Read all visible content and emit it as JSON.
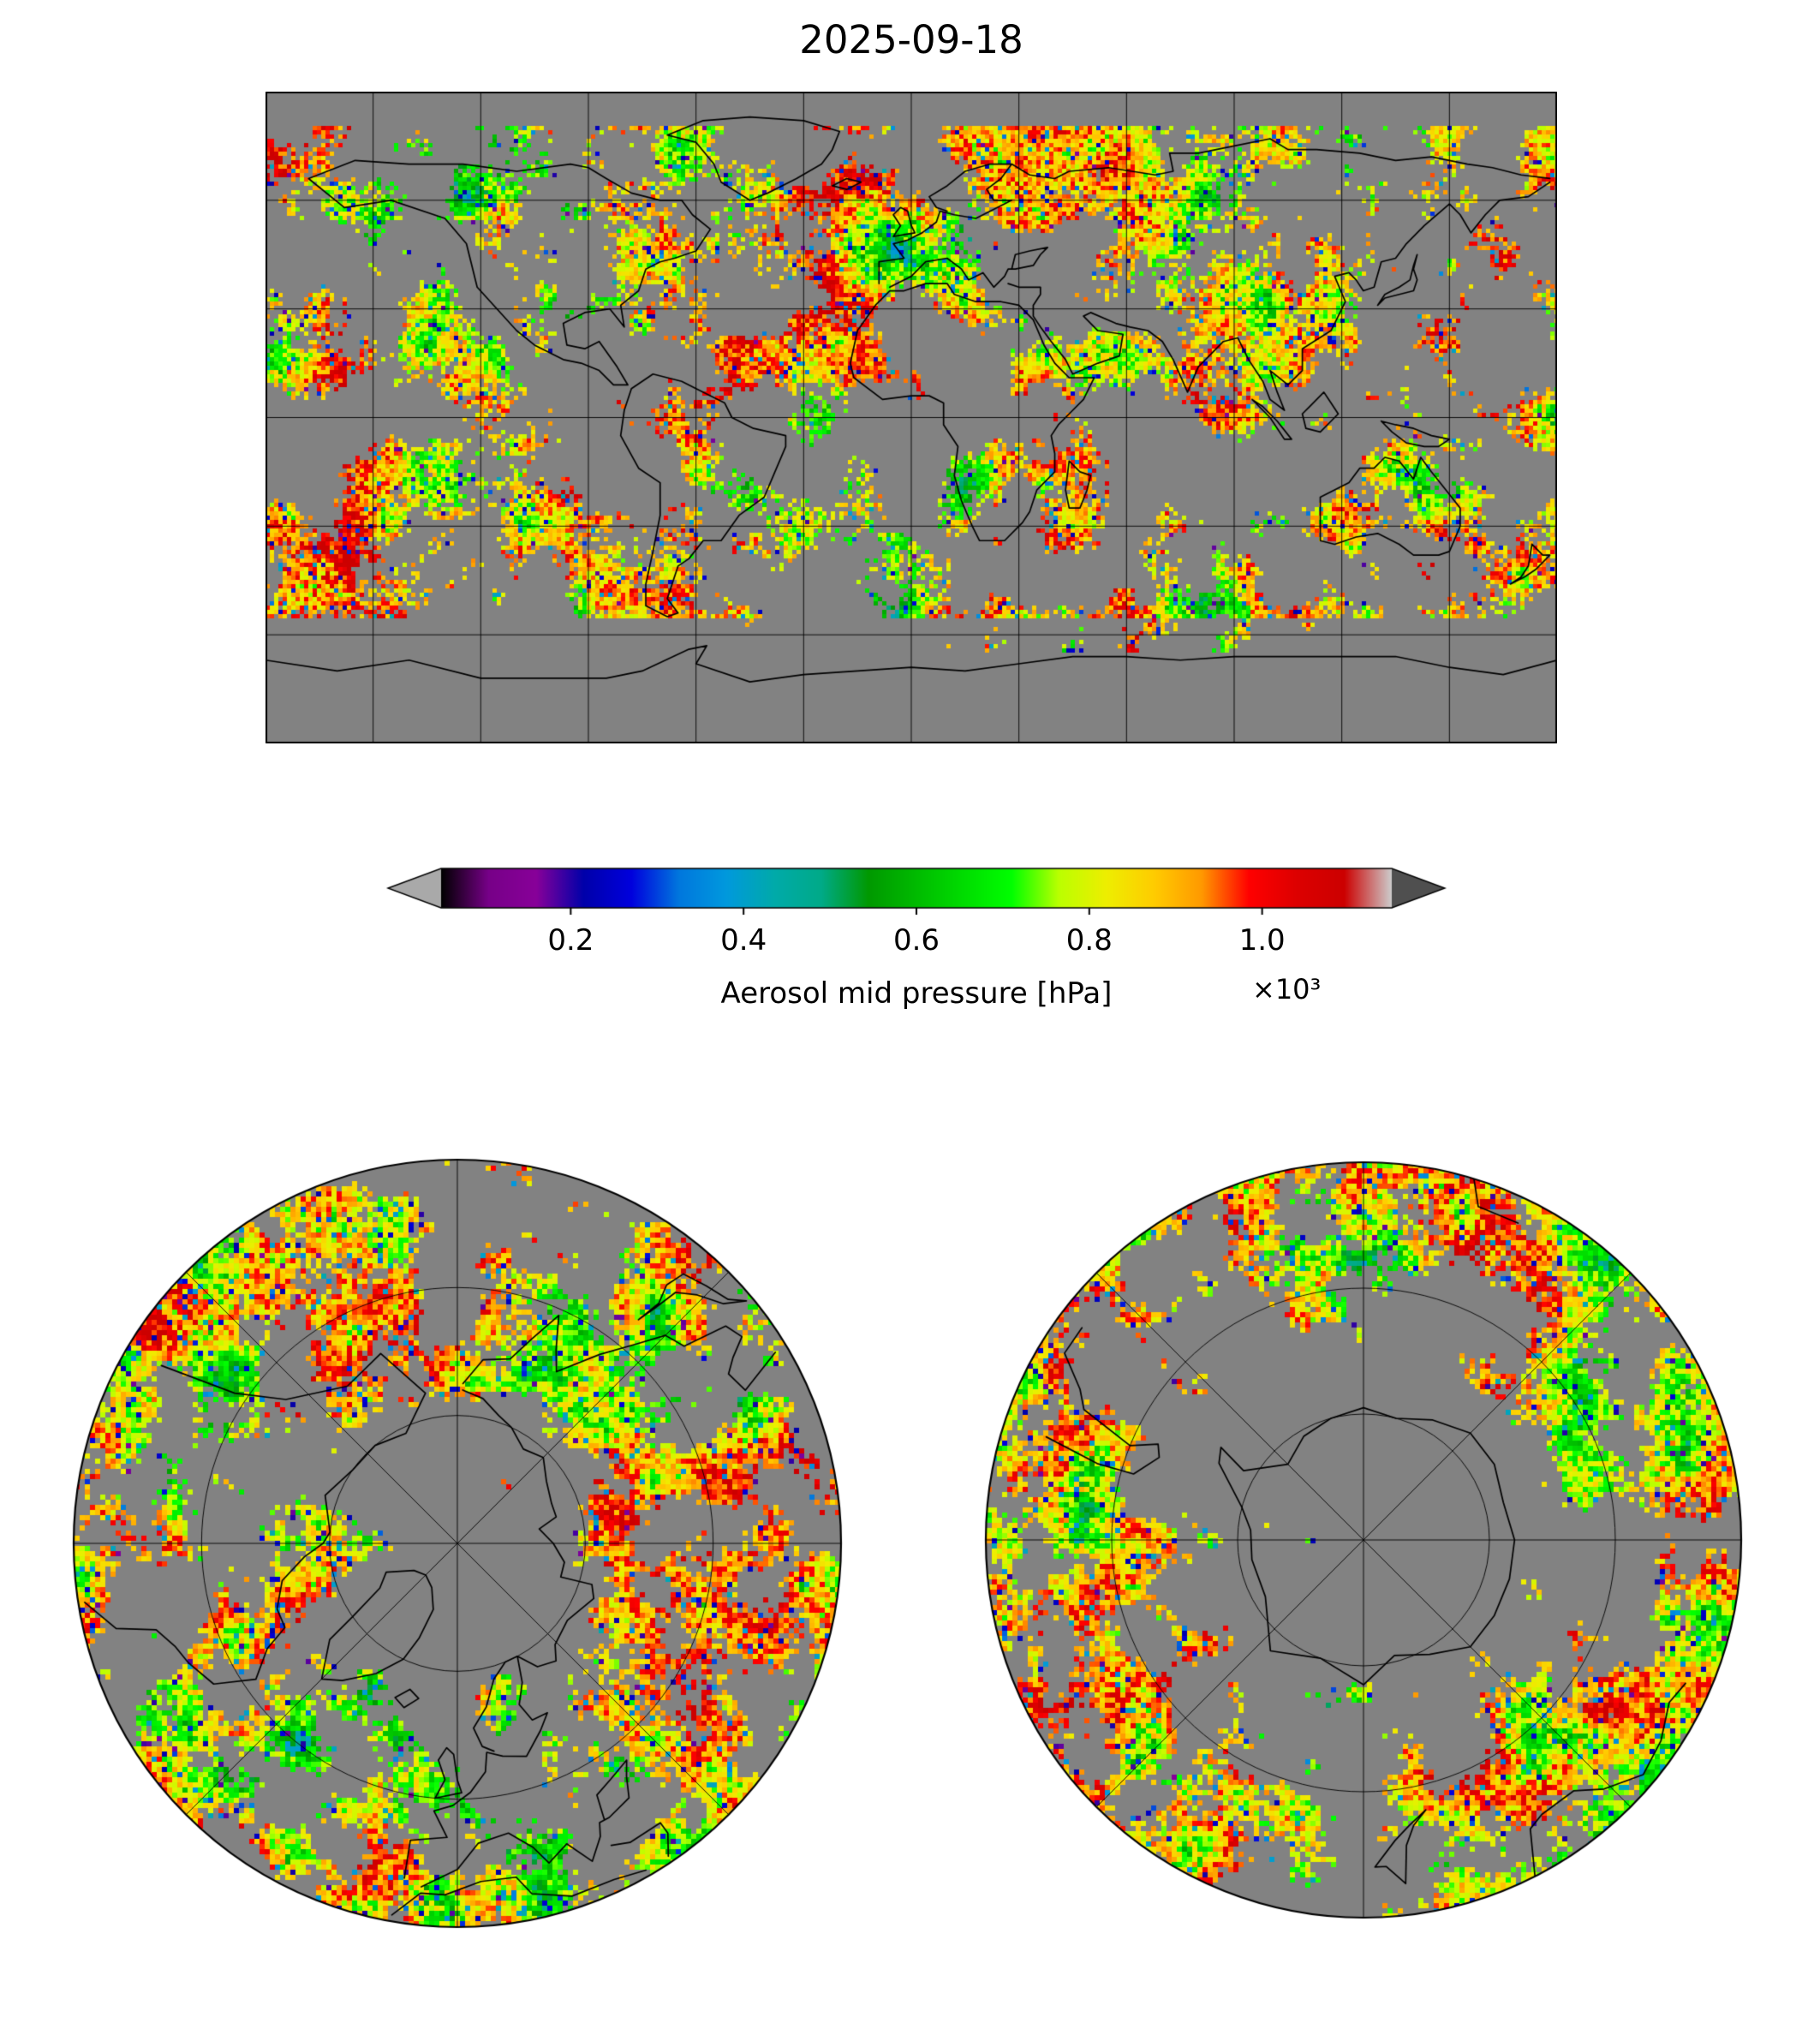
{
  "title": "2025-09-18",
  "chart_data": {
    "type": "heatmap",
    "title": "2025-09-18",
    "description": "Daily satellite aerosol mid pressure field shown on a global equirectangular map (top) and matching north-polar (bottom left) and south-polar (bottom right) projections. Gray background = no data; speckled colored patches = retrieved aerosol mid pressure, dominated by red/orange/yellow (700-1000 hPa) with scattered green and blue patches.",
    "variable": "Aerosol mid pressure",
    "units": "hPa",
    "date": "2025-09-18",
    "background_color": "#ffffff",
    "no_data_color": "#828282",
    "coastline_color": "#000000",
    "gridline_color": "#000000",
    "colorbar": {
      "label": "Aerosol mid pressure [hPa]",
      "offset_text": "×10³",
      "tick_labels": [
        "0.2",
        "0.4",
        "0.6",
        "0.8",
        "1.0"
      ],
      "tick_values": [
        200,
        400,
        600,
        800,
        1000
      ],
      "value_range_hpa": [
        50,
        1150
      ],
      "orientation": "horizontal",
      "extend": "both",
      "under_arrow_color": "#a9a9a9",
      "over_arrow_color": "#4f4f4f",
      "colormap": "nipy_spectral",
      "colormap_stops": [
        [
          0.0,
          "#000000"
        ],
        [
          0.05,
          "#770088"
        ],
        [
          0.1,
          "#880099"
        ],
        [
          0.15,
          "#0000aa"
        ],
        [
          0.2,
          "#0000dd"
        ],
        [
          0.25,
          "#0077dd"
        ],
        [
          0.3,
          "#0099dd"
        ],
        [
          0.35,
          "#00aaaa"
        ],
        [
          0.4,
          "#00aa88"
        ],
        [
          0.45,
          "#009900"
        ],
        [
          0.5,
          "#00bb00"
        ],
        [
          0.55,
          "#00dd00"
        ],
        [
          0.6,
          "#00ff00"
        ],
        [
          0.65,
          "#bbff00"
        ],
        [
          0.7,
          "#eeee00"
        ],
        [
          0.75,
          "#ffcc00"
        ],
        [
          0.8,
          "#ff9900"
        ],
        [
          0.85,
          "#ff0000"
        ],
        [
          0.9,
          "#dd0000"
        ],
        [
          0.95,
          "#cc0000"
        ],
        [
          1.0,
          "#cccccc"
        ]
      ]
    },
    "panels": [
      {
        "id": "global",
        "projection": "equirectangular",
        "lon_range": [
          -180,
          180
        ],
        "lat_range": [
          -90,
          90
        ],
        "gridline_step_deg": 30
      },
      {
        "id": "north-polar",
        "projection": "polar-north",
        "lat_limit": 30,
        "latitude_circles": [
          70,
          50
        ],
        "meridian_step_deg": 45
      },
      {
        "id": "south-polar",
        "projection": "polar-south",
        "lat_limit": -30,
        "latitude_circles": [
          -70,
          -50
        ],
        "meridian_step_deg": 45
      }
    ]
  }
}
